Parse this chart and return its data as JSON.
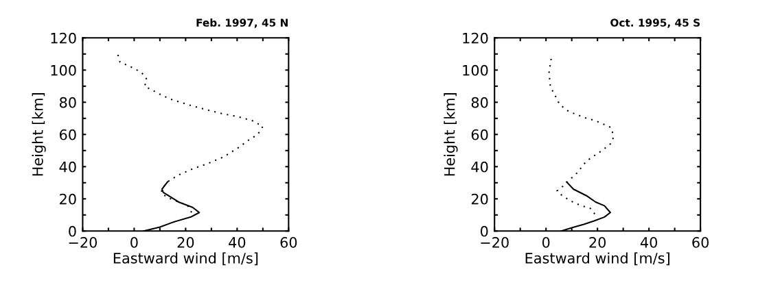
{
  "chart_data": [
    {
      "type": "line",
      "title": "Feb. 1997, 45 N",
      "xlabel": "Eastward wind [m/s]",
      "ylabel": "Height [km]",
      "xlim": [
        -20,
        60
      ],
      "ylim": [
        0,
        120
      ],
      "xticks": [
        -20,
        {
          "value": -10,
          "label": null
        },
        0,
        {
          "value": 10,
          "label": null
        },
        20,
        {
          "value": 30,
          "label": null
        },
        40,
        {
          "value": 50,
          "label": null
        },
        60
      ],
      "yticks": [
        0,
        {
          "value": 10,
          "label": null
        },
        20,
        {
          "value": 30,
          "label": null
        },
        40,
        {
          "value": 50,
          "label": null
        },
        60,
        {
          "value": 70,
          "label": null
        },
        80,
        {
          "value": 90,
          "label": null
        },
        100,
        {
          "value": 110,
          "label": null
        },
        120
      ],
      "grid": false,
      "legend": false,
      "marker": "none",
      "series": [
        {
          "color": "#000000",
          "line_style": "dotted",
          "x": [
            -6.3,
            -5.5,
            -1.3,
            2.3,
            4.1,
            5,
            4,
            6,
            10,
            14,
            18,
            22,
            28,
            34,
            40.5,
            46,
            50,
            48,
            44,
            40.7,
            34.7,
            28.7,
            22.7,
            16.7,
            13,
            10.7,
            10.7,
            14.7,
            20.7,
            22.7
          ],
          "values": [
            109.5,
            105,
            102,
            99,
            96.6,
            93.8,
            90,
            88.4,
            85,
            82,
            80,
            78,
            75.4,
            73,
            71,
            68.5,
            65,
            60,
            56,
            52,
            46,
            42,
            38.6,
            34.4,
            30.6,
            26,
            23,
            19.6,
            16,
            10.5
          ]
        },
        {
          "color": "#000000",
          "line_style": "solid",
          "x": [
            13,
            10.8,
            11.3,
            17.3,
            22.7,
            25.3,
            22,
            15.3,
            10,
            3.7
          ],
          "values": [
            30.6,
            26,
            24,
            18,
            14.7,
            11.5,
            8.7,
            5.6,
            2.5,
            0
          ]
        }
      ]
    },
    {
      "type": "line",
      "title": "Oct. 1995, 45 S",
      "xlabel": "Eastward wind [m/s]",
      "ylabel": "Height [km]",
      "xlim": [
        -20,
        60
      ],
      "ylim": [
        0,
        120
      ],
      "xticks": [
        -20,
        {
          "value": -10,
          "label": null
        },
        0,
        {
          "value": 10,
          "label": null
        },
        20,
        {
          "value": 30,
          "label": null
        },
        40,
        {
          "value": 50,
          "label": null
        },
        60
      ],
      "yticks": [
        0,
        {
          "value": 10,
          "label": null
        },
        20,
        {
          "value": 30,
          "label": null
        },
        40,
        {
          "value": 50,
          "label": null
        },
        60,
        {
          "value": 70,
          "label": null
        },
        80,
        {
          "value": 90,
          "label": null
        },
        100,
        {
          "value": 110,
          "label": null
        },
        120
      ],
      "grid": false,
      "legend": false,
      "marker": "none",
      "series": [
        {
          "color": "#000000",
          "line_style": "dotted",
          "x": [
            2,
            1.2,
            1.7,
            3.3,
            5.3,
            8.7,
            14.7,
            19.3,
            23.3,
            25.3,
            26.3,
            25.3,
            22,
            18,
            15.7,
            14,
            12,
            9.3,
            8,
            6,
            4.3,
            6,
            9.3,
            13.3,
            17.3,
            19
          ],
          "values": [
            107,
            98.6,
            89.5,
            85,
            78.6,
            74.4,
            70.6,
            68.5,
            65.7,
            64.3,
            58.7,
            54.5,
            50.3,
            46,
            43.4,
            40,
            36,
            32,
            30,
            27,
            25,
            22.4,
            18.9,
            16,
            14,
            10.5
          ]
        },
        {
          "color": "#000000",
          "line_style": "solid",
          "x": [
            8,
            10.7,
            16,
            19.3,
            22.7,
            25,
            22.7,
            18.7,
            14.7,
            10,
            6
          ],
          "values": [
            30.5,
            26,
            21.7,
            18,
            15.7,
            11.5,
            8.7,
            6.3,
            4.2,
            2,
            0
          ]
        }
      ]
    }
  ]
}
